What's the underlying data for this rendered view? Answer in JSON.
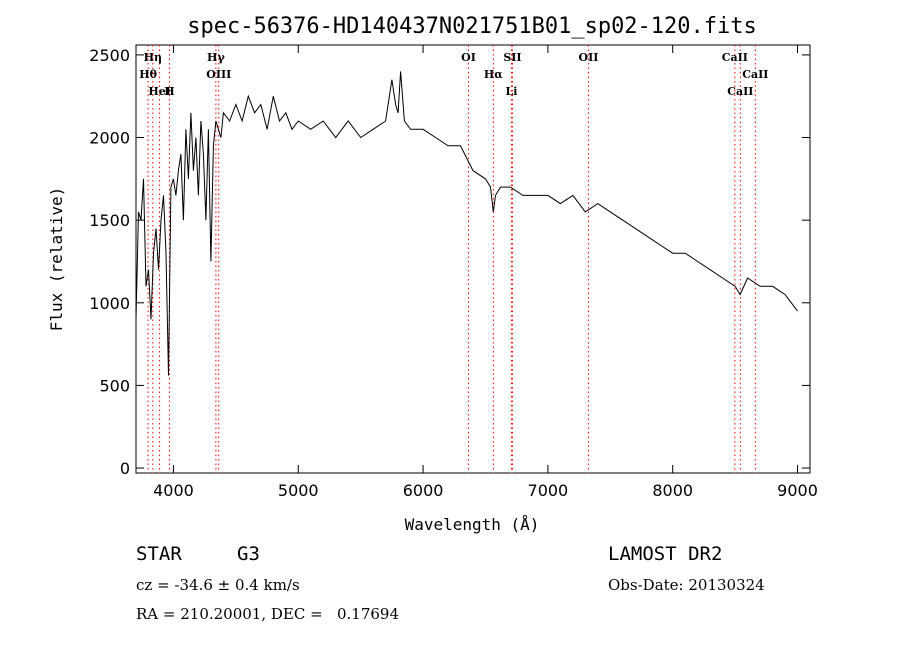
{
  "chart_data": {
    "type": "line",
    "title": "spec-56376-HD140437N021751B01_sp02-120.fits",
    "xlabel": "Wavelength (Å)",
    "ylabel": "Flux (relative)",
    "xlim": [
      3700,
      9100
    ],
    "ylim": [
      -30,
      2560
    ],
    "x_ticks": [
      4000,
      5000,
      6000,
      7000,
      8000,
      9000
    ],
    "y_ticks": [
      0,
      500,
      1000,
      1500,
      2000,
      2500
    ],
    "grid": false,
    "series": [
      {
        "x": [
          3700,
          3720,
          3740,
          3760,
          3780,
          3800,
          3820,
          3840,
          3860,
          3880,
          3900,
          3920,
          3940,
          3960,
          3980,
          4000,
          4020,
          4040,
          4060,
          4080,
          4100,
          4120,
          4140,
          4160,
          4180,
          4200,
          4220,
          4240,
          4260,
          4280,
          4300,
          4320,
          4340,
          4360,
          4380,
          4400,
          4450,
          4500,
          4550,
          4600,
          4650,
          4700,
          4750,
          4800,
          4850,
          4900,
          4950,
          5000,
          5100,
          5200,
          5300,
          5400,
          5500,
          5600,
          5700,
          5750,
          5780,
          5800,
          5820,
          5850,
          5900,
          6000,
          6100,
          6200,
          6300,
          6400,
          6500,
          6540,
          6563,
          6580,
          6620,
          6700,
          6800,
          6900,
          7000,
          7100,
          7200,
          7300,
          7400,
          7500,
          7600,
          7700,
          7800,
          7900,
          8000,
          8100,
          8200,
          8300,
          8400,
          8500,
          8540,
          8600,
          8700,
          8800,
          8900,
          8950,
          9000
        ],
        "y": [
          900,
          1550,
          1500,
          1750,
          1100,
          1200,
          900,
          1300,
          1450,
          1200,
          1500,
          1650,
          1300,
          560,
          1700,
          1750,
          1650,
          1800,
          1900,
          1500,
          2050,
          1750,
          2150,
          1800,
          2000,
          1650,
          2100,
          1900,
          1500,
          2050,
          1250,
          1950,
          2100,
          2050,
          2000,
          2150,
          2100,
          2200,
          2100,
          2250,
          2150,
          2200,
          2050,
          2250,
          2100,
          2150,
          2050,
          2100,
          2050,
          2100,
          2000,
          2100,
          2000,
          2050,
          2100,
          2350,
          2200,
          2150,
          2400,
          2100,
          2050,
          2050,
          2000,
          1950,
          1950,
          1800,
          1750,
          1700,
          1550,
          1650,
          1700,
          1700,
          1650,
          1650,
          1650,
          1600,
          1650,
          1550,
          1600,
          1550,
          1500,
          1450,
          1400,
          1350,
          1300,
          1300,
          1250,
          1200,
          1150,
          1100,
          1050,
          1150,
          1100,
          1100,
          1050,
          1000,
          950
        ]
      }
    ],
    "annotations": [
      {
        "label": "Hη",
        "wavelength": 3835
      },
      {
        "label": "Hθ",
        "wavelength": 3797
      },
      {
        "label": "H",
        "wavelength": 3968
      },
      {
        "label": "HeI",
        "wavelength": 3889
      },
      {
        "label": "Hγ",
        "wavelength": 4340
      },
      {
        "label": "OIII",
        "wavelength": 4363
      },
      {
        "label": "OI",
        "wavelength": 6364
      },
      {
        "label": "Hα",
        "wavelength": 6563
      },
      {
        "label": "SII",
        "wavelength": 6716
      },
      {
        "label": "Li",
        "wavelength": 6708
      },
      {
        "label": "OII",
        "wavelength": 7325
      },
      {
        "label": "CaII",
        "wavelength": 8498
      },
      {
        "label": "CaII",
        "wavelength": 8662
      },
      {
        "label": "CaII",
        "wavelength": 8542
      }
    ]
  },
  "info": {
    "class_label": "STAR",
    "subclass_label": "G3",
    "survey_label": "LAMOST DR2",
    "cz_text": "cz = -34.6 ± 0.4 km/s",
    "obs_date_text": "Obs-Date: 20130324",
    "coords_text": "RA = 210.20001, DEC =   0.17694"
  },
  "colors": {
    "spectrum": "#000000",
    "line_markers": "#ff0000",
    "axes": "#000000"
  }
}
